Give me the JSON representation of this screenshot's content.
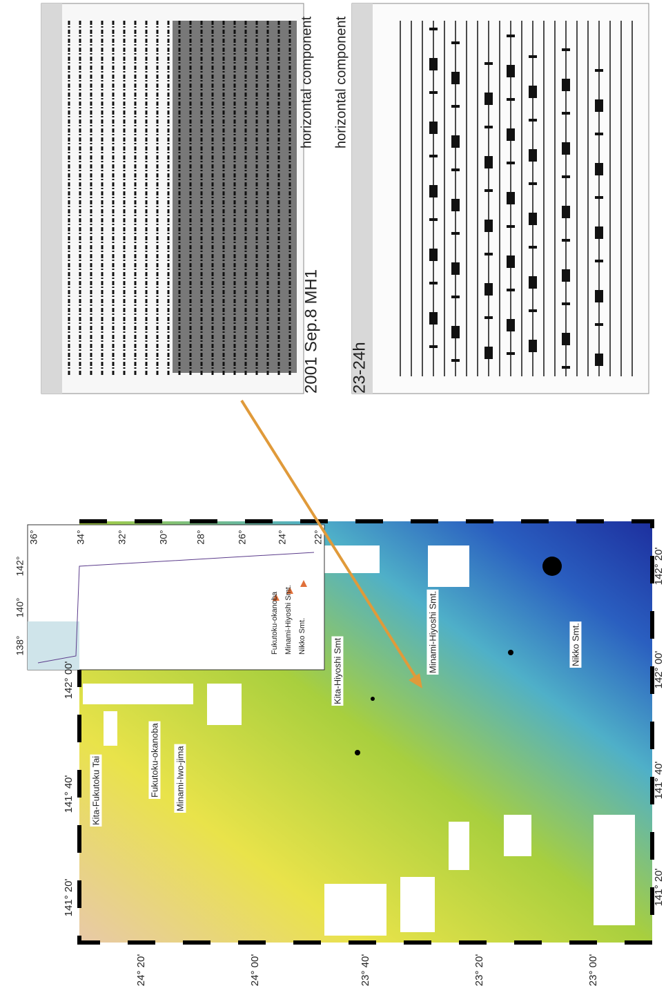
{
  "seismograms": [
    {
      "title": "2001 Sep.8 MH1",
      "component": "horizontal component"
    },
    {
      "title": "23-24h",
      "component": "horizontal component"
    }
  ],
  "map": {
    "lon_labels": [
      "141° 20'",
      "141° 40'",
      "142° 00'",
      "142° 20'"
    ],
    "lat_labels": [
      "24° 20'",
      "24° 00'",
      "23° 40'",
      "23° 20'",
      "23° 00'"
    ],
    "features": [
      "Kita-Fukutoku Tai",
      "Fukutoku-okanoba",
      "Minami-Iwo-jima",
      "Kita-Hiyoshi Smt",
      "Minami-Hiyoshi Smt.",
      "Nikko Smt."
    ]
  },
  "inset": {
    "lon_labels": [
      "138°",
      "140°",
      "142°"
    ],
    "lat_labels": [
      "36°",
      "34°",
      "32°",
      "30°",
      "28°",
      "26°",
      "24°",
      "22°"
    ],
    "legend": [
      "Fukutoku-okanoba",
      "Minami-Hiyoshi Smt.",
      "Nikko Smt."
    ]
  }
}
